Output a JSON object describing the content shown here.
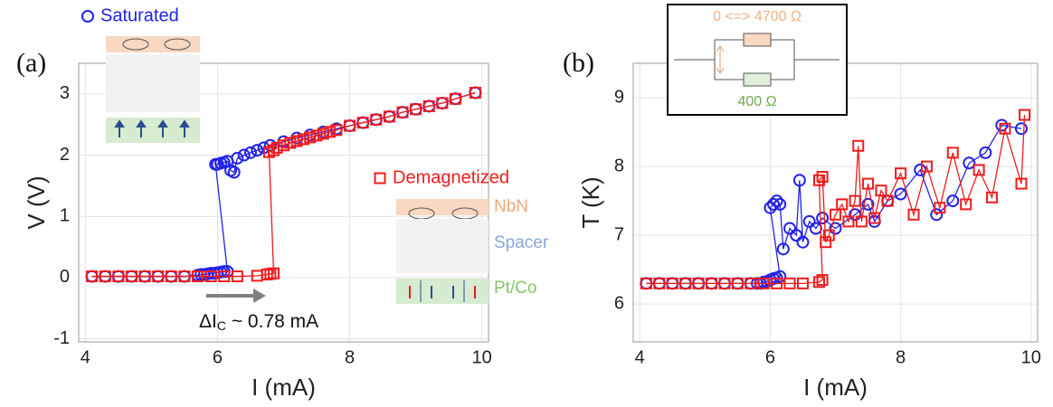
{
  "chart_data": [
    {
      "type": "scatter",
      "panel_label": "(a)",
      "x_label": "I (mA)",
      "y_label": "V (V)",
      "xlim": [
        3.9,
        10.1
      ],
      "ylim": [
        -1.05,
        3.5
      ],
      "xticks": [
        4,
        6,
        8,
        10
      ],
      "yticks": [
        -1,
        0,
        1,
        2,
        3
      ],
      "grid": true,
      "series": [
        {
          "name": "Saturated",
          "color": "#2323e6",
          "marker": "circle",
          "x": [
            4.1,
            4.3,
            4.5,
            4.7,
            4.9,
            5.1,
            5.3,
            5.5,
            5.7,
            5.75,
            5.8,
            5.85,
            5.9,
            5.95,
            6.0,
            6.05,
            6.1,
            6.15,
            5.97,
            6.0,
            6.05,
            6.1,
            6.15,
            6.2,
            6.25,
            6.3,
            6.4,
            6.5,
            6.6,
            6.7,
            6.8,
            7.0,
            7.2,
            7.4,
            7.6,
            7.8,
            8.0,
            8.2,
            8.4,
            8.6,
            8.8,
            9.0,
            9.2,
            9.4,
            9.6,
            9.9
          ],
          "values": [
            0.02,
            0.02,
            0.02,
            0.02,
            0.02,
            0.02,
            0.02,
            0.02,
            0.04,
            0.05,
            0.05,
            0.06,
            0.07,
            0.07,
            0.08,
            0.09,
            0.1,
            0.1,
            1.85,
            1.85,
            1.87,
            1.88,
            1.9,
            1.75,
            1.72,
            1.95,
            2.0,
            2.04,
            2.08,
            2.12,
            2.16,
            2.22,
            2.28,
            2.33,
            2.38,
            2.43,
            2.48,
            2.53,
            2.58,
            2.63,
            2.7,
            2.75,
            2.8,
            2.85,
            2.92,
            3.02
          ]
        },
        {
          "name": "Demagnetized",
          "color": "#ee1c1c",
          "marker": "square",
          "x": [
            4.1,
            4.3,
            4.5,
            4.7,
            4.9,
            5.1,
            5.3,
            5.5,
            5.7,
            5.9,
            6.1,
            6.3,
            6.6,
            6.75,
            6.8,
            6.85,
            6.78,
            6.85,
            6.9,
            7.0,
            7.1,
            7.2,
            7.3,
            7.4,
            7.5,
            7.6,
            7.7,
            7.8,
            8.0,
            8.2,
            8.4,
            8.6,
            8.8,
            9.0,
            9.2,
            9.4,
            9.6,
            9.9
          ],
          "values": [
            0.02,
            0.02,
            0.02,
            0.02,
            0.02,
            0.02,
            0.02,
            0.02,
            0.02,
            0.02,
            0.02,
            0.02,
            0.03,
            0.05,
            0.06,
            0.07,
            2.05,
            2.08,
            2.12,
            2.16,
            2.2,
            2.23,
            2.26,
            2.29,
            2.32,
            2.35,
            2.38,
            2.41,
            2.48,
            2.53,
            2.58,
            2.63,
            2.7,
            2.75,
            2.8,
            2.85,
            2.92,
            3.02
          ]
        }
      ],
      "layer_labels": [
        "NbN",
        "Spacer",
        "Pt/Co"
      ],
      "shift_label": {
        "main": "ΔI",
        "subscript": "C",
        "rest": " ~ 0.78 mA"
      }
    },
    {
      "type": "scatter",
      "panel_label": "(b)",
      "x_label": "I (mA)",
      "y_label": "T (K)",
      "xlim": [
        3.9,
        10.1
      ],
      "ylim": [
        5.45,
        9.5
      ],
      "xticks": [
        4,
        6,
        8,
        10
      ],
      "yticks": [
        6,
        7,
        8,
        9
      ],
      "grid": true,
      "series": [
        {
          "color": "#2323e6",
          "marker": "circle",
          "x": [
            4.1,
            4.3,
            4.5,
            4.7,
            4.9,
            5.1,
            5.3,
            5.5,
            5.7,
            5.8,
            5.85,
            5.9,
            5.95,
            6.0,
            6.05,
            6.1,
            6.15,
            6.0,
            6.05,
            6.1,
            6.15,
            6.2,
            6.3,
            6.4,
            6.45,
            6.5,
            6.6,
            6.7,
            6.8,
            7.0,
            7.3,
            7.5,
            7.6,
            7.8,
            8.0,
            8.3,
            8.55,
            8.8,
            9.05,
            9.3,
            9.55,
            9.85
          ],
          "values": [
            6.3,
            6.3,
            6.3,
            6.3,
            6.3,
            6.3,
            6.3,
            6.3,
            6.3,
            6.3,
            6.3,
            6.32,
            6.33,
            6.35,
            6.37,
            6.38,
            6.4,
            7.4,
            7.45,
            7.5,
            7.45,
            6.8,
            7.1,
            7.0,
            7.8,
            6.9,
            7.2,
            7.1,
            7.25,
            7.1,
            7.3,
            7.45,
            7.2,
            7.5,
            7.6,
            7.95,
            7.3,
            7.5,
            8.05,
            8.2,
            8.6,
            8.55
          ]
        },
        {
          "color": "#ee1c1c",
          "marker": "square",
          "x": [
            4.1,
            4.3,
            4.5,
            4.7,
            4.9,
            5.1,
            5.3,
            5.5,
            5.7,
            5.9,
            6.1,
            6.3,
            6.5,
            6.75,
            6.8,
            6.75,
            6.8,
            6.85,
            6.9,
            7.0,
            7.1,
            7.2,
            7.3,
            7.35,
            7.4,
            7.5,
            7.6,
            7.7,
            7.8,
            8.0,
            8.2,
            8.4,
            8.6,
            8.8,
            9.0,
            9.2,
            9.4,
            9.6,
            9.85,
            9.9
          ],
          "values": [
            6.3,
            6.3,
            6.3,
            6.3,
            6.3,
            6.3,
            6.3,
            6.3,
            6.3,
            6.3,
            6.3,
            6.3,
            6.3,
            6.32,
            6.35,
            7.8,
            7.85,
            6.9,
            7.0,
            7.3,
            7.45,
            7.2,
            7.5,
            8.3,
            7.2,
            7.75,
            7.25,
            7.65,
            7.5,
            7.9,
            7.3,
            8.0,
            7.4,
            8.2,
            7.45,
            7.95,
            7.55,
            8.55,
            7.75,
            8.75
          ]
        }
      ],
      "circuit_labels": [
        "0 <=> 4700 Ω",
        "400 Ω"
      ]
    }
  ]
}
